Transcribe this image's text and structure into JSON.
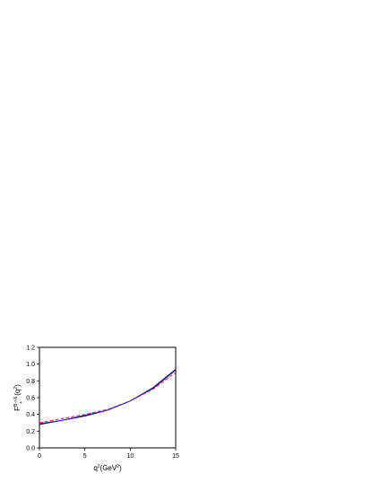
{
  "chart_data": {
    "type": "line",
    "xlabel": {
      "base": "q",
      "sup": "2",
      "mid": "(GeV",
      "sup2": "2",
      "end": ")"
    },
    "ylabel": {
      "base": "F",
      "sup": "B->X",
      "sub": "+",
      "mid": "(q",
      "sup2": "2",
      "end": ")"
    },
    "x": [
      0,
      2.5,
      5,
      7.5,
      10,
      12.5,
      15
    ],
    "series": [
      {
        "color": "#000000",
        "dash": false,
        "values": [
          0.28,
          0.33,
          0.38,
          0.45,
          0.56,
          0.71,
          0.93
        ]
      },
      {
        "color": "#e0207f",
        "dash": true,
        "values": [
          0.3,
          0.35,
          0.4,
          0.46,
          0.56,
          0.7,
          0.9
        ]
      },
      {
        "color": "#3030c0",
        "dash": false,
        "values": [
          0.29,
          0.33,
          0.39,
          0.45,
          0.56,
          0.72,
          0.94
        ]
      }
    ],
    "xlim": [
      0,
      15
    ],
    "xticks": [
      0,
      5,
      10,
      15
    ],
    "ylim": [
      0,
      1.2
    ],
    "yticks": [
      {
        "value": 0,
        "label": "0.0"
      },
      0.2,
      0.4,
      0.6,
      0.8,
      {
        "value": 1,
        "label": "1.0"
      },
      1.2
    ]
  }
}
